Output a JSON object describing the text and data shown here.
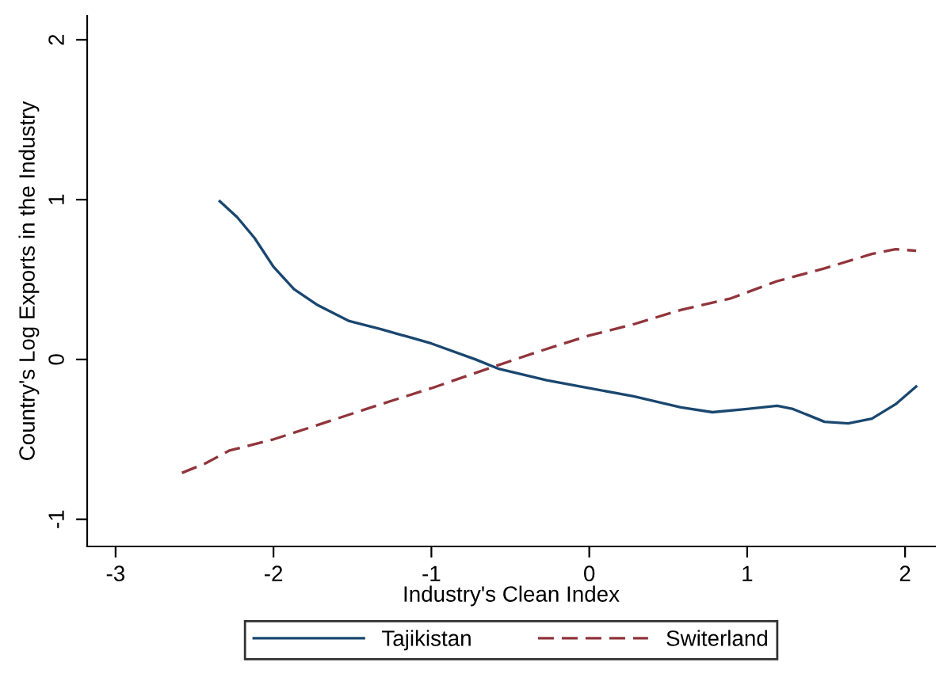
{
  "chart_data": {
    "type": "line",
    "xlabel": "Industry's Clean Index",
    "ylabel": "Country's Log Exports in the Industry",
    "xlim": [
      -3.18,
      2.19
    ],
    "ylim": [
      -1.17,
      2.15
    ],
    "xticks": [
      -3,
      -2,
      -1,
      0,
      1,
      2
    ],
    "yticks": [
      -1,
      0,
      1,
      2
    ],
    "grid": false,
    "legend": "bottom",
    "series": [
      {
        "name": "Tajikistan",
        "color": "#1a476f",
        "line_style": "solid",
        "x": [
          -2.34,
          -2.23,
          -2.12,
          -2.0,
          -1.87,
          -1.72,
          -1.52,
          -1.32,
          -1.0,
          -0.72,
          -0.57,
          -0.27,
          0,
          0.28,
          0.58,
          0.78,
          1.0,
          1.19,
          1.29,
          1.49,
          1.64,
          1.79,
          1.94,
          2.07
        ],
        "values": [
          0.99,
          0.89,
          0.76,
          0.58,
          0.44,
          0.34,
          0.24,
          0.19,
          0.1,
          0.0,
          -0.06,
          -0.13,
          -0.18,
          -0.23,
          -0.3,
          -0.33,
          -0.31,
          -0.29,
          -0.31,
          -0.39,
          -0.4,
          -0.37,
          -0.28,
          -0.17
        ]
      },
      {
        "name": "Switerland",
        "color": "#90353b",
        "line_style": "dashed",
        "x": [
          -2.58,
          -2.43,
          -2.28,
          -2.0,
          -1.72,
          -1.32,
          -1.0,
          -0.62,
          -0.32,
          0,
          0.28,
          0.58,
          0.89,
          1.19,
          1.49,
          1.79,
          1.94,
          2.07
        ],
        "values": [
          -0.71,
          -0.65,
          -0.57,
          -0.5,
          -0.41,
          -0.28,
          -0.18,
          -0.05,
          0.05,
          0.15,
          0.22,
          0.31,
          0.38,
          0.49,
          0.57,
          0.66,
          0.69,
          0.68
        ]
      }
    ]
  }
}
